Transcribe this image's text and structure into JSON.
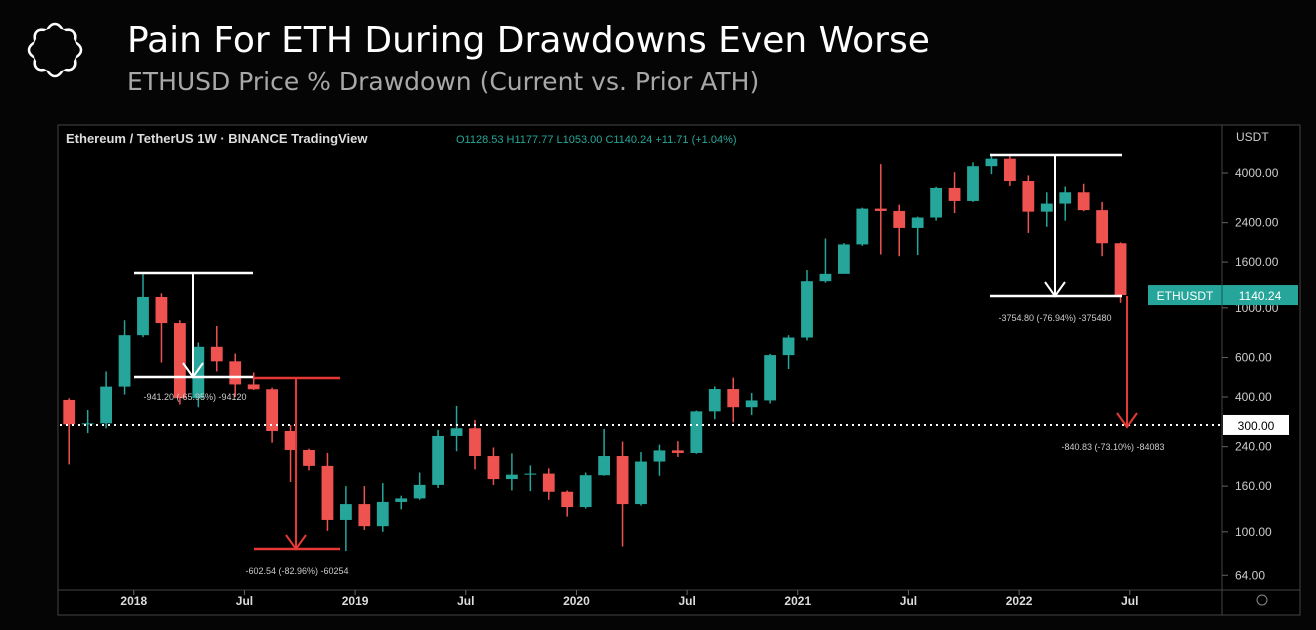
{
  "header": {
    "title": "Pain For ETH During Drawdowns Even Worse",
    "subtitle": "ETHUSD Price % Drawdown (Current vs. Prior ATH)"
  },
  "chart_data": {
    "type": "candlestick",
    "symbol_line": "Ethereum / TetherUS  1W · BINANCE  TradingView",
    "ohlc_line": "O1128.53 H1177.77 L1053.00 C1140.24 +11.71 (+1.04%)",
    "y_unit": "USDT",
    "up_color": "#26a69a",
    "down_color": "#ef5350",
    "log_scale": true,
    "xlim": [
      "2017-09",
      "2022-12"
    ],
    "ylim": [
      55,
      6350
    ],
    "xticks": [
      {
        "value": "2018-01",
        "label": "2018"
      },
      {
        "value": "2018-07",
        "label": "Jul"
      },
      {
        "value": "2019-01",
        "label": "2019"
      },
      {
        "value": "2019-07",
        "label": "Jul"
      },
      {
        "value": "2020-01",
        "label": "2020"
      },
      {
        "value": "2020-07",
        "label": "Jul"
      },
      {
        "value": "2021-01",
        "label": "2021"
      },
      {
        "value": "2021-07",
        "label": "Jul"
      },
      {
        "value": "2022-01",
        "label": "2022"
      },
      {
        "value": "2022-07",
        "label": "Jul"
      }
    ],
    "yticks": [
      {
        "value": 64,
        "label": "64.00"
      },
      {
        "value": 100,
        "label": "100.00"
      },
      {
        "value": 160,
        "label": "160.00"
      },
      {
        "value": 240,
        "label": "240.00"
      },
      {
        "value": 400,
        "label": "400.00"
      },
      {
        "value": 600,
        "label": "600.00"
      },
      {
        "value": 1000,
        "label": "1000.00"
      },
      {
        "value": 1600,
        "label": "1600.00"
      },
      {
        "value": 2400,
        "label": "2400.00"
      },
      {
        "value": 4000,
        "label": "4000.00"
      }
    ],
    "x": [
      "2017-09",
      "2017-10",
      "2017-11",
      "2017-12",
      "2018-01",
      "2018-02",
      "2018-03",
      "2018-04",
      "2018-05",
      "2018-06",
      "2018-07",
      "2018-08",
      "2018-09",
      "2018-10",
      "2018-11",
      "2018-12",
      "2019-01",
      "2019-02",
      "2019-03",
      "2019-04",
      "2019-05",
      "2019-06",
      "2019-07",
      "2019-08",
      "2019-09",
      "2019-10",
      "2019-11",
      "2019-12",
      "2020-01",
      "2020-02",
      "2020-03",
      "2020-04",
      "2020-05",
      "2020-06",
      "2020-07",
      "2020-08",
      "2020-09",
      "2020-10",
      "2020-11",
      "2020-12",
      "2021-01",
      "2021-02",
      "2021-03",
      "2021-04",
      "2021-05",
      "2021-06",
      "2021-07",
      "2021-08",
      "2021-09",
      "2021-10",
      "2021-11",
      "2021-12",
      "2022-01",
      "2022-02",
      "2022-03",
      "2022-04",
      "2022-05",
      "2022-06"
    ],
    "open": [
      388,
      302,
      305,
      445,
      755,
      1118,
      855,
      395,
      670,
      577,
      455,
      433,
      282,
      232,
      197,
      113,
      133,
      106,
      136,
      141,
      162,
      268,
      290,
      218,
      172,
      180,
      182,
      151,
      129,
      179,
      218,
      133,
      206,
      231,
      225,
      345,
      434,
      360,
      386,
      615,
      737,
      1315,
      1418,
      1919,
      2773,
      2707,
      2273,
      2530,
      3430,
      3000,
      4288,
      4632,
      3682,
      2688,
      2920,
      3280,
      2730,
      1942
    ],
    "high": [
      395,
      350,
      520,
      880,
      1420,
      1160,
      880,
      700,
      830,
      625,
      515,
      440,
      300,
      235,
      225,
      160,
      160,
      165,
      145,
      184,
      285,
      365,
      316,
      238,
      224,
      198,
      192,
      153,
      184,
      288,
      253,
      227,
      245,
      254,
      348,
      446,
      488,
      417,
      623,
      755,
      1475,
      2040,
      1945,
      2800,
      4380,
      2890,
      2553,
      3470,
      4030,
      4460,
      4870,
      4780,
      3900,
      3280,
      3480,
      3580,
      2970,
      1960
    ],
    "low": [
      200,
      276,
      290,
      410,
      740,
      570,
      370,
      360,
      520,
      400,
      430,
      250,
      167,
      188,
      101,
      82,
      102,
      100,
      126,
      139,
      157,
      229,
      190,
      162,
      153,
      152,
      139,
      117,
      127,
      178,
      86,
      131,
      178,
      216,
      223,
      318,
      308,
      332,
      374,
      533,
      715,
      1295,
      1428,
      1890,
      1730,
      1700,
      1720,
      2450,
      2650,
      2970,
      3950,
      3500,
      2160,
      2300,
      2450,
      2700,
      1700,
      1053
    ],
    "close": [
      302,
      305,
      445,
      755,
      1118,
      855,
      395,
      670,
      577,
      455,
      433,
      282,
      232,
      197,
      113,
      133,
      106,
      136,
      141,
      162,
      268,
      290,
      218,
      172,
      180,
      182,
      151,
      129,
      179,
      218,
      133,
      206,
      231,
      225,
      345,
      434,
      360,
      386,
      615,
      737,
      1315,
      1418,
      1919,
      2773,
      2707,
      2273,
      2530,
      3430,
      3000,
      4288,
      4632,
      3682,
      2688,
      2920,
      3280,
      2730,
      1942,
      1140.24
    ],
    "price_line": {
      "label": "ETHUSDT",
      "value": 1140.24
    },
    "hline": {
      "value": 300,
      "label": "300.00"
    },
    "annotations": [
      {
        "text": "-941.20 (-65.95%) -94120"
      },
      {
        "text": "-602.54 (-82.96%) -60254"
      },
      {
        "text": "-3754.80 (-76.94%) -375480"
      },
      {
        "text": "-840.83 (-73.10%) -84083"
      }
    ]
  }
}
